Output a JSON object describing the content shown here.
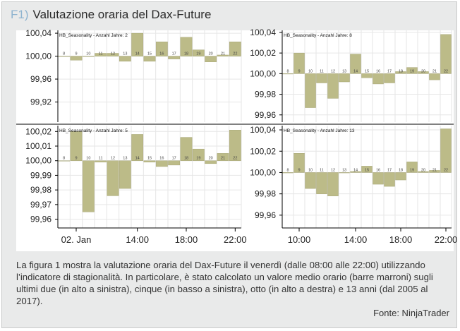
{
  "figure": {
    "number": "F1)",
    "title": "Valutazione oraria del Dax-Future",
    "caption": "La figura 1 mostra la valutazione oraria del Dax-Future il venerdì (dalle 08:00 alle 22:00) utilizzando l’indicatore di stagionalità. In particolare, è stato calcolato un valore medio orario (barre marroni) sugli ultimi due (in alto a sinistra), cinque (in basso a sinistra), otto (in alto a destra) e 13 anni (dal 2005 al 2017).",
    "source": "Fonte: NinjaTrader"
  },
  "colors": {
    "bar": "#bcbb88",
    "bar_stroke": "#9d9c6a",
    "grid": "#e6e6e6",
    "axis": "#000000",
    "text": "#222222"
  },
  "x_ticks_left": [
    "02. Jan",
    "14:00",
    "18:00",
    "22:00"
  ],
  "x_ticks_right": [
    "10:00",
    "14:00",
    "18:00",
    "22:00"
  ],
  "chart_data": [
    {
      "type": "bar",
      "title": "HB_Seasonality - Anzahl Jahre: 2",
      "categories": [
        "8",
        "9",
        "10",
        "11",
        "12",
        "13",
        "14",
        "15",
        "16",
        "17",
        "18",
        "19",
        "20",
        "21",
        "22"
      ],
      "values": [
        100.0,
        99.993,
        100.0,
        100.005,
        100.005,
        99.991,
        100.04,
        99.991,
        100.025,
        99.995,
        100.033,
        100.011,
        99.99,
        100.002,
        100.025
      ],
      "ylim": [
        99.885,
        100.045
      ],
      "yticks": [
        "100,04",
        "100,00",
        "99,96",
        "99,92"
      ],
      "xlabel": "",
      "ylabel": "",
      "grid": true
    },
    {
      "type": "bar",
      "title": "HB_Seasonality - Anzahl Jahre: 5",
      "categories": [
        "8",
        "9",
        "10",
        "11",
        "12",
        "13",
        "14",
        "15",
        "16",
        "17",
        "18",
        "19",
        "20",
        "21",
        "22"
      ],
      "values": [
        100.0,
        100.02,
        99.965,
        99.999,
        99.976,
        99.981,
        100.018,
        99.999,
        99.996,
        99.997,
        100.016,
        100.008,
        99.998,
        100.005,
        100.021
      ],
      "ylim": [
        99.954,
        100.024
      ],
      "yticks": [
        "100,02",
        "100,01",
        "100,00",
        "99,99",
        "99,98",
        "99,97",
        "99,96"
      ],
      "xlabel": "",
      "ylabel": "",
      "grid": true
    },
    {
      "type": "bar",
      "title": "HB_Seasonality - Anzahl Jahre: 8",
      "categories": [
        "8",
        "9",
        "10",
        "11",
        "12",
        "13",
        "14",
        "15",
        "16",
        "17",
        "18",
        "19",
        "20",
        "21",
        "22"
      ],
      "values": [
        100.0,
        100.02,
        99.967,
        99.991,
        99.976,
        99.992,
        100.019,
        99.996,
        99.99,
        99.991,
        100.002,
        100.006,
        100.002,
        99.994,
        100.038
      ],
      "ylim": [
        99.953,
        100.042
      ],
      "yticks": [
        "100,04",
        "100,02",
        "100,00",
        "99,98",
        "99,96"
      ],
      "xlabel": "",
      "ylabel": "",
      "grid": true
    },
    {
      "type": "bar",
      "title": "HB_Seasonality - Anzahl Jahre: 13",
      "categories": [
        "8",
        "9",
        "10",
        "11",
        "12",
        "13",
        "14",
        "15",
        "16",
        "17",
        "18",
        "19",
        "20",
        "21",
        "22"
      ],
      "values": [
        100.0,
        100.018,
        99.985,
        99.98,
        99.978,
        100.0,
        100.001,
        100.006,
        99.989,
        99.987,
        99.993,
        100.01,
        100.001,
        100.002,
        100.041
      ],
      "ylim": [
        99.948,
        100.044
      ],
      "yticks": [
        "100,04",
        "100,02",
        "100,00",
        "99,98",
        "99,96"
      ],
      "xlabel": "",
      "ylabel": "",
      "grid": true
    }
  ]
}
